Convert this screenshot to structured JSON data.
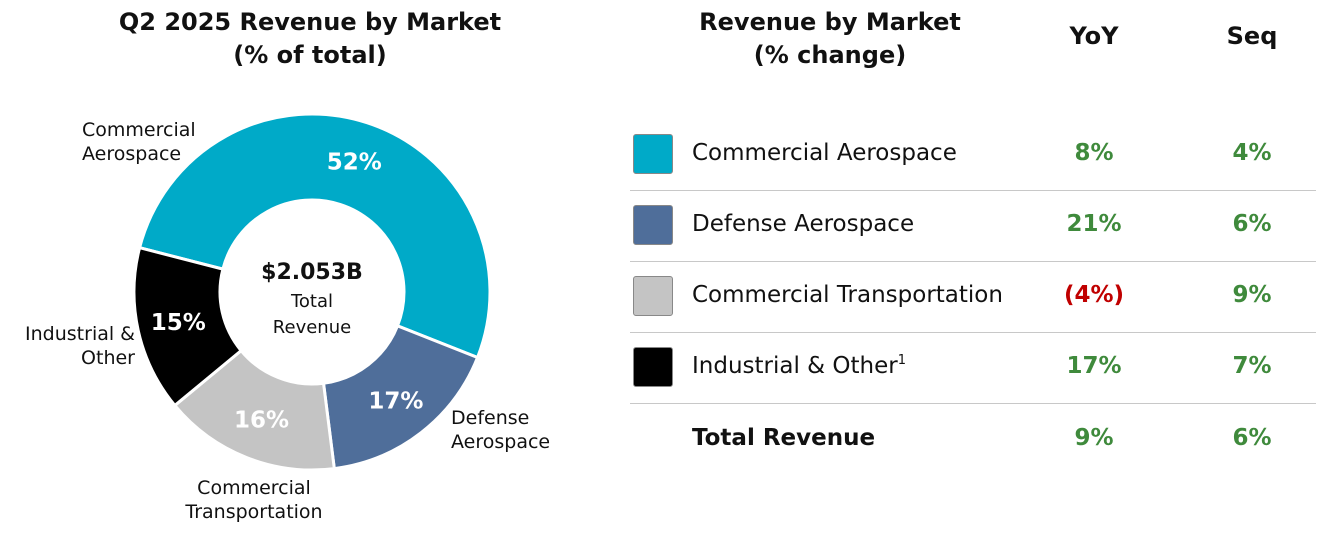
{
  "left_title": {
    "line1": "Q2 2025 Revenue by Market",
    "line2": "(% of total)"
  },
  "right_title": {
    "line1": "Revenue by Market",
    "line2": "(% change)"
  },
  "columns": {
    "yoy": "YoY",
    "seq": "Seq"
  },
  "center": {
    "value": "$2.053B",
    "line1": "Total",
    "line2": "Revenue"
  },
  "colors": {
    "commercial_aerospace": "#00aac8",
    "defense_aerospace": "#4f6e9a",
    "commercial_transportation": "#c4c4c4",
    "industrial_other": "#000000",
    "positive": "#3f8a3c",
    "negative": "#c00000"
  },
  "chart_data": {
    "type": "pie",
    "variant": "donut",
    "title": "Q2 2025 Revenue by Market",
    "subtitle": "(% of total)",
    "center_text": "$2.053B Total Revenue",
    "slices": [
      {
        "name": "Commercial Aerospace",
        "label_lines": [
          "Commercial",
          "Aerospace"
        ],
        "value": 52,
        "value_label": "52%",
        "color": "#00aac8",
        "text": "light"
      },
      {
        "name": "Defense Aerospace",
        "label_lines": [
          "Defense",
          "Aerospace"
        ],
        "value": 17,
        "value_label": "17%",
        "color": "#4f6e9a",
        "text": "light"
      },
      {
        "name": "Commercial Transportation",
        "label_lines": [
          "Commercial",
          "Transportation"
        ],
        "value": 16,
        "value_label": "16%",
        "color": "#c4c4c4",
        "text": "light"
      },
      {
        "name": "Industrial & Other",
        "label_lines": [
          "Industrial &",
          "Other"
        ],
        "value": 15,
        "value_label": "15%",
        "color": "#000000",
        "text": "light"
      }
    ]
  },
  "table": {
    "rows": [
      {
        "name": "Commercial Aerospace",
        "footnote": "",
        "color": "#00aac8",
        "yoy": "8%",
        "seq": "4%",
        "yoy_negative": false
      },
      {
        "name": "Defense Aerospace",
        "footnote": "",
        "color": "#4f6e9a",
        "yoy": "21%",
        "seq": "6%",
        "yoy_negative": false
      },
      {
        "name": "Commercial Transportation",
        "footnote": "",
        "color": "#c4c4c4",
        "yoy": "(4%)",
        "seq": "9%",
        "yoy_negative": true
      },
      {
        "name": "Industrial & Other",
        "footnote": "1",
        "color": "#000000",
        "yoy": "17%",
        "seq": "7%",
        "yoy_negative": false
      }
    ],
    "total": {
      "name": "Total Revenue",
      "yoy": "9%",
      "seq": "6%"
    }
  }
}
